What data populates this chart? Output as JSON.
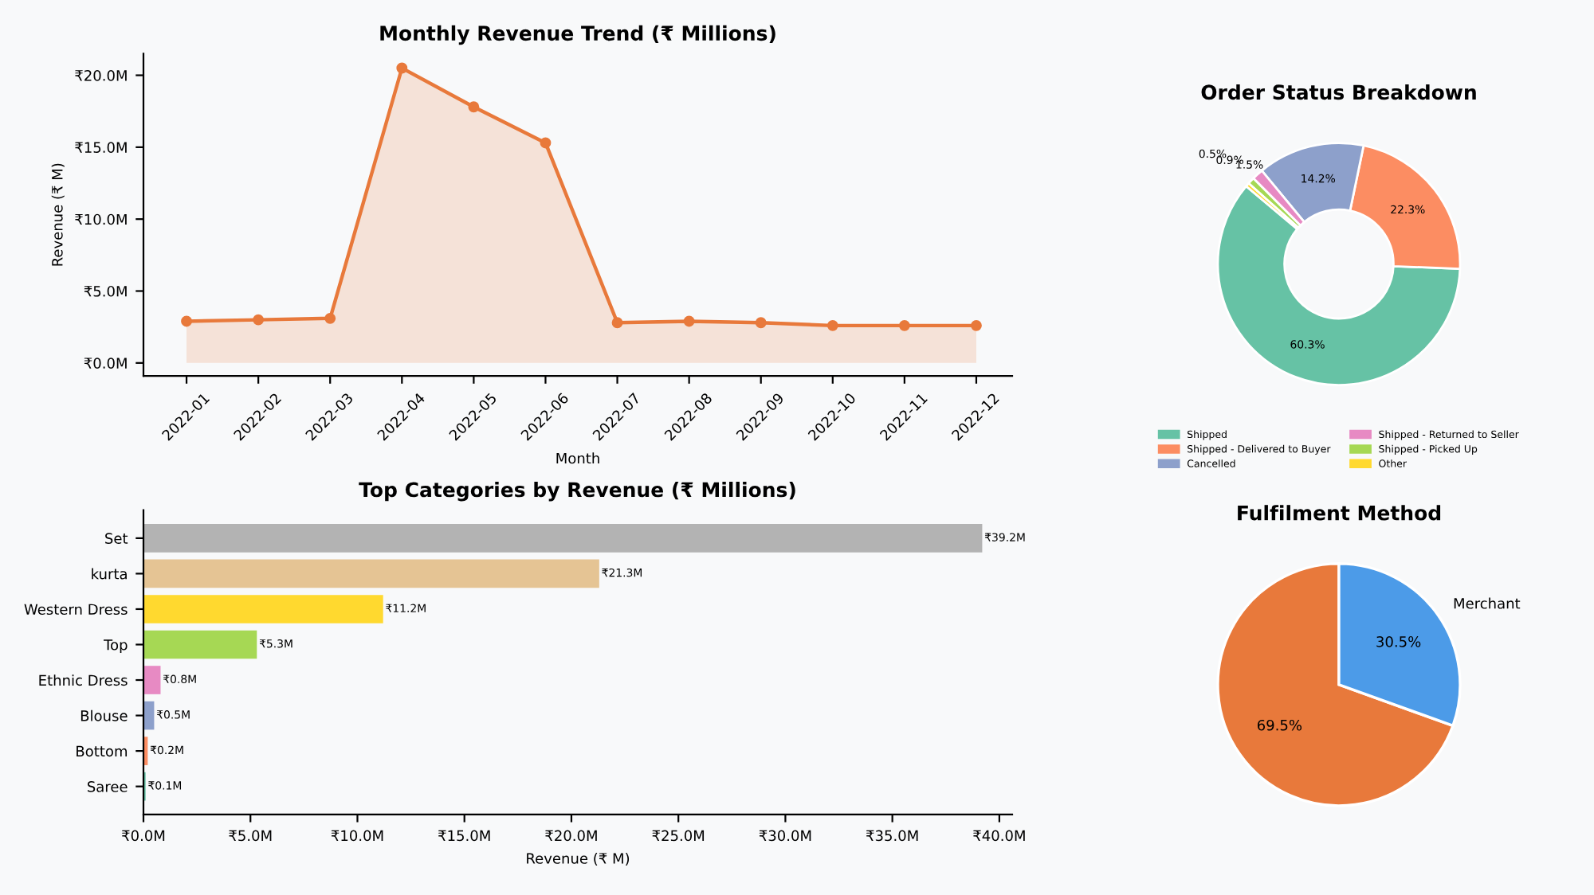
{
  "chart_data": [
    {
      "type": "area",
      "title": "Monthly Revenue Trend (₹ Millions)",
      "xlabel": "Month",
      "ylabel": "Revenue (₹ M)",
      "categories": [
        "2022-01",
        "2022-02",
        "2022-03",
        "2022-04",
        "2022-05",
        "2022-06",
        "2022-07",
        "2022-08",
        "2022-09",
        "2022-10",
        "2022-11",
        "2022-12"
      ],
      "series": [
        {
          "color": "#e8793b",
          "values": [
            2.9,
            3.0,
            3.1,
            20.5,
            17.8,
            15.3,
            2.8,
            2.9,
            2.8,
            2.6,
            2.6,
            2.6
          ]
        }
      ],
      "marker": "circle",
      "ylim": [
        -0.9,
        21.5
      ],
      "yticks": [
        {
          "value": 0,
          "label": "₹0.0M"
        },
        {
          "value": 5,
          "label": "₹5.0M"
        },
        {
          "value": 10,
          "label": "₹10.0M"
        },
        {
          "value": 15,
          "label": "₹15.0M"
        },
        {
          "value": 20,
          "label": "₹20.0M"
        }
      ]
    },
    {
      "type": "donut",
      "title": "Order Status Breakdown",
      "categories": [
        "Shipped",
        "Shipped - Delivered to Buyer",
        "Cancelled",
        "Shipped - Returned to Seller",
        "Shipped - Picked Up",
        "Other"
      ],
      "values": [
        60.3,
        22.3,
        14.2,
        1.5,
        0.9,
        0.5
      ],
      "colors": [
        "#66c2a5",
        "#fc8d62",
        "#8da0cb",
        "#e78ac3",
        "#a6d854",
        "#ffd92f"
      ],
      "value_labels": [
        "60.3%",
        "22.3%",
        "14.2%",
        "1.5%",
        "0.9%",
        "0.5%"
      ],
      "legend": "bottom"
    },
    {
      "type": "bar",
      "orientation": "horizontal",
      "title": "Top Categories by Revenue (₹ Millions)",
      "xlabel": "Revenue (₹ M)",
      "categories": [
        "Set",
        "kurta",
        "Western Dress",
        "Top",
        "Ethnic Dress",
        "Blouse",
        "Bottom",
        "Saree"
      ],
      "values": [
        39.2,
        21.3,
        11.2,
        5.3,
        0.8,
        0.5,
        0.2,
        0.1
      ],
      "colors": [
        "#b3b3b3",
        "#e5c494",
        "#ffd92f",
        "#a6d854",
        "#e78ac3",
        "#8da0cb",
        "#fc8d62",
        "#66c2a5"
      ],
      "value_labels": [
        "₹39.2M",
        "₹21.3M",
        "₹11.2M",
        "₹5.3M",
        "₹0.8M",
        "₹0.5M",
        "₹0.2M",
        "₹0.1M"
      ],
      "xlim": [
        0,
        40.6
      ],
      "xticks": [
        {
          "value": 0,
          "label": "₹0.0M"
        },
        {
          "value": 5,
          "label": "₹5.0M"
        },
        {
          "value": 10,
          "label": "₹10.0M"
        },
        {
          "value": 15,
          "label": "₹15.0M"
        },
        {
          "value": 20,
          "label": "₹20.0M"
        },
        {
          "value": 25,
          "label": "₹25.0M"
        },
        {
          "value": 30,
          "label": "₹30.0M"
        },
        {
          "value": 35,
          "label": "₹35.0M"
        },
        {
          "value": 40,
          "label": "₹40.0M"
        }
      ]
    },
    {
      "type": "pie",
      "title": "Fulfilment Method",
      "categories": [
        null,
        "Merchant"
      ],
      "values": [
        69.5,
        30.5
      ],
      "colors": [
        "#e8793b",
        "#4c9be8"
      ],
      "value_labels": [
        "69.5%",
        "30.5%"
      ]
    }
  ]
}
